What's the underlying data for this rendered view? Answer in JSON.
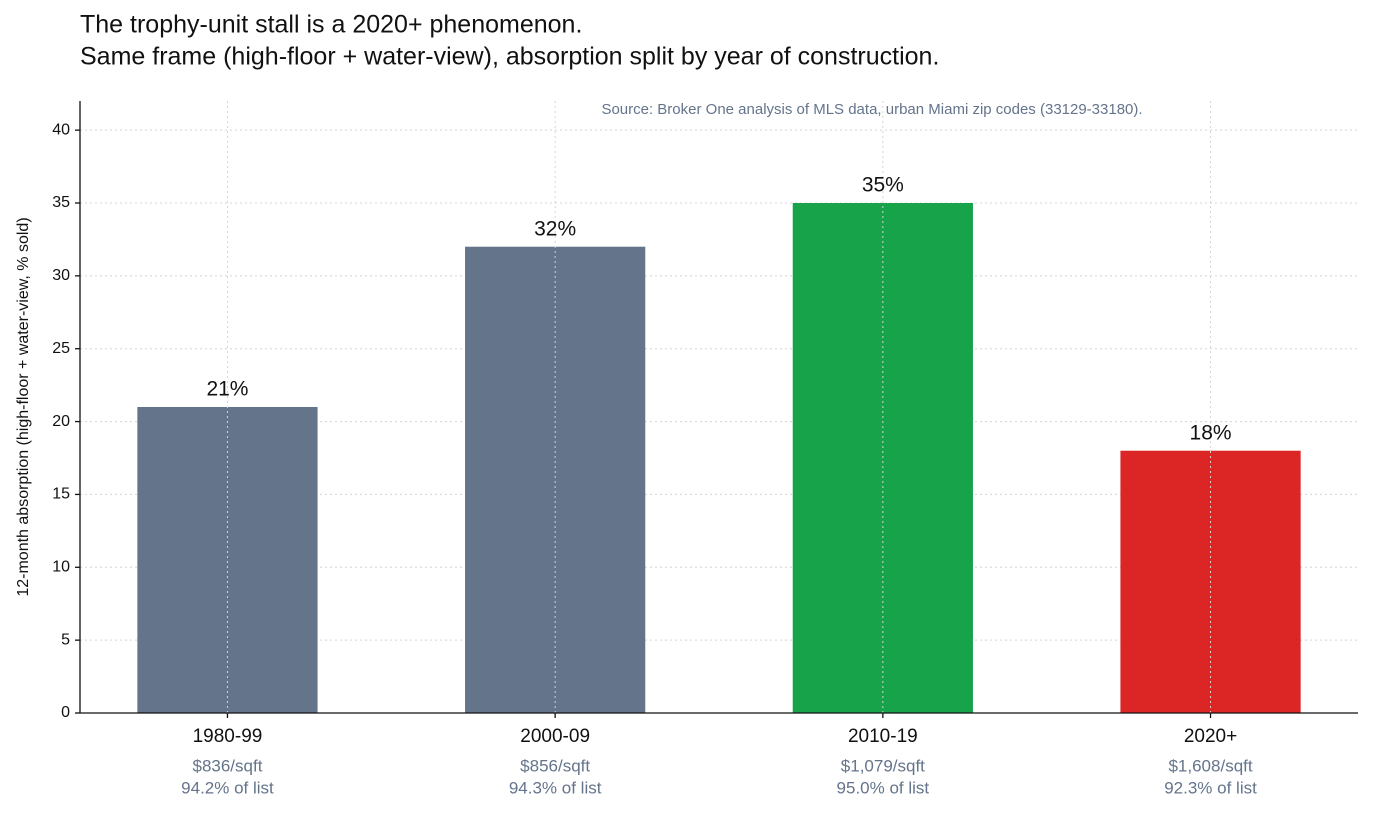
{
  "chart_data": {
    "type": "bar",
    "title": "The trophy-unit stall is a 2020+ phenomenon.",
    "subtitle": "Same frame (high-floor + water-view), absorption split by year of construction.",
    "source": "Source: Broker One analysis of MLS data, urban Miami zip codes (33129-33180).",
    "y_label": "12-month absorption (high-floor + water-view, % sold)",
    "categories": [
      "1980-99",
      "2000-09",
      "2010-19",
      "2020+"
    ],
    "price_labels": [
      "$836/sqft",
      "$856/sqft",
      "$1,079/sqft",
      "$1,608/sqft"
    ],
    "list_labels": [
      "94.2% of list",
      "94.3% of list",
      "95.0% of list",
      "92.3% of list"
    ],
    "values": [
      21,
      32,
      35,
      18
    ],
    "value_labels": [
      "21%",
      "32%",
      "35%",
      "18%"
    ],
    "colors": [
      "#64748b",
      "#64748b",
      "#16a34a",
      "#dc2626"
    ],
    "ylim": [
      0,
      42
    ],
    "yticks": [
      0,
      5,
      10,
      15,
      20,
      25,
      30,
      35,
      40
    ],
    "grid": true
  }
}
